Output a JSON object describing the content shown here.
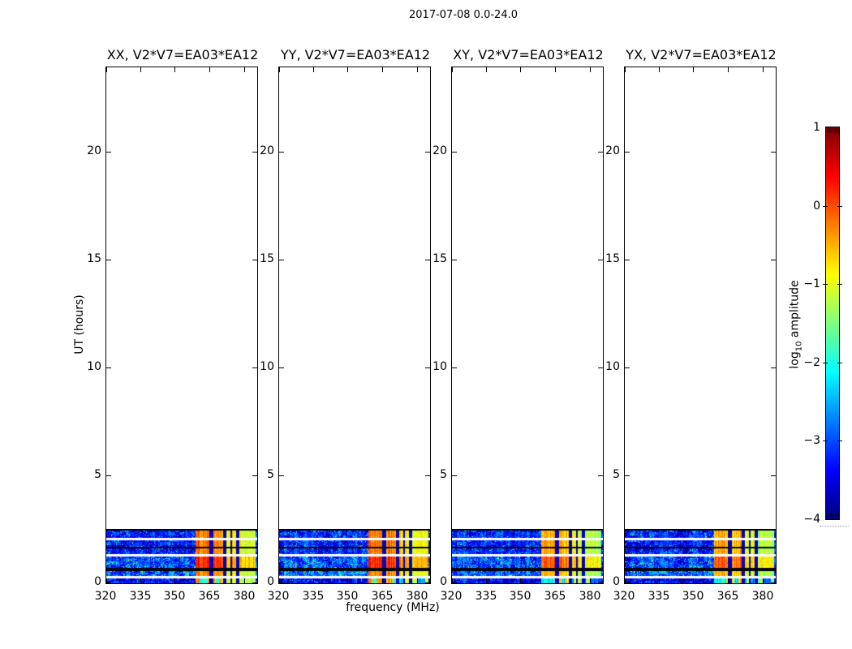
{
  "chart_data": {
    "type": "heatmap",
    "title": "2017-07-08 0.0-24.0",
    "xlabel": "frequency (MHz)",
    "ylabel": "UT (hours)",
    "xlim": [
      320,
      386
    ],
    "ylim": [
      0,
      24
    ],
    "xticks": [
      320,
      335,
      350,
      365,
      380
    ],
    "xtick_labels": [
      "320",
      "335",
      "350",
      "365",
      "380"
    ],
    "yticks": [
      0,
      5,
      10,
      15,
      20
    ],
    "ytick_labels": [
      "0",
      "5",
      "10",
      "15",
      "20"
    ],
    "panels": [
      {
        "id": "XX",
        "label": "XX, V2*V7=EA03*EA12",
        "value_offset": 0,
        "seed": 11
      },
      {
        "id": "YY",
        "label": "YY, V2*V7=EA03*EA12",
        "value_offset": 0.05,
        "seed": 23
      },
      {
        "id": "XY",
        "label": "XY, V2*V7=EA03*EA12",
        "value_offset": -0.3,
        "seed": 37
      },
      {
        "id": "YX",
        "label": "YX, V2*V7=EA03*EA12",
        "value_offset": -0.3,
        "seed": 51
      }
    ],
    "colorbar": {
      "label_prefix": "log",
      "label_sub": "10",
      "label_suffix": " amplitude",
      "colormap": "jet",
      "vmin": -4,
      "vmax": 1,
      "ticks": [
        1,
        0,
        -1,
        -2,
        -3,
        -4
      ],
      "tick_labels": [
        "1",
        "0",
        "−1",
        "−2",
        "−3",
        "−4"
      ]
    },
    "data_time_coverage_hours": [
      0,
      2.52
    ],
    "background_log10_amplitude": -3.3,
    "rfi_region_mhz": [
      359,
      385.2
    ],
    "rfi_bands_mhz": [
      {
        "range": [
          359,
          365
        ],
        "boost": 0.35
      },
      {
        "range": [
          366.5,
          371
        ],
        "boost": 0.25
      },
      {
        "range": [
          372.5,
          374.2
        ],
        "boost": -0.25
      },
      {
        "range": [
          374.9,
          376.5
        ],
        "boost": -0.25
      },
      {
        "range": [
          378,
          385.2
        ],
        "boost": -0.45
      }
    ],
    "time_segments_hours": [
      {
        "kind": "flagged",
        "h": [
          2.455,
          2.52
        ]
      },
      {
        "kind": "data",
        "h": [
          2.09,
          2.455
        ],
        "bg": -3.25,
        "rfi": -0.55,
        "speckle": 0.05
      },
      {
        "kind": "gap",
        "h": [
          2.0,
          2.09
        ]
      },
      {
        "kind": "data",
        "h": [
          1.7,
          2.0
        ],
        "bg": -3.25,
        "rfi": -0.5,
        "speckle": 0.05
      },
      {
        "kind": "flagged",
        "h": [
          1.6,
          1.7
        ]
      },
      {
        "kind": "data",
        "h": [
          1.36,
          1.6
        ],
        "bg": -3.3,
        "rfi": -0.55,
        "speckle": 0.05
      },
      {
        "kind": "gap",
        "h": [
          1.24,
          1.36
        ]
      },
      {
        "kind": "data",
        "h": [
          0.73,
          1.24
        ],
        "bg": -3.1,
        "rfi": -0.15,
        "speckle": 0.1
      },
      {
        "kind": "flagged",
        "h": [
          0.58,
          0.73
        ]
      },
      {
        "kind": "data",
        "h": [
          0.32,
          0.58
        ],
        "bg": -3.0,
        "rfi": -0.6,
        "speckle": 0.12
      },
      {
        "kind": "gap",
        "h": [
          0.23,
          0.32
        ]
      },
      {
        "kind": "data",
        "h": [
          0.0,
          0.23
        ],
        "bg": -3.45,
        "rfi": -0.7,
        "speckle": 0.04,
        "patchy": true
      }
    ]
  }
}
